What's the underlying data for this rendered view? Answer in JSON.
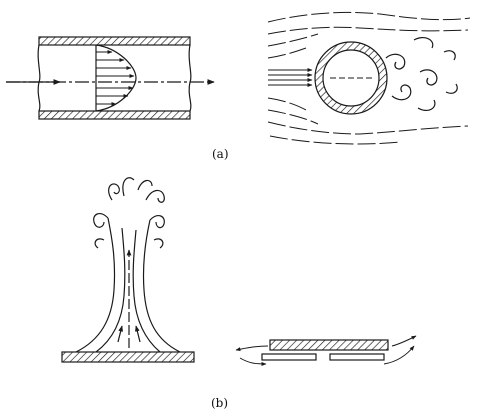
{
  "figure": {
    "label_a": "(a)",
    "label_b": "(b)",
    "panels": [
      {
        "id": "a-left",
        "depicts": "pipe-flow-velocity-profile"
      },
      {
        "id": "a-right",
        "depicts": "flow-around-circular-cylinder"
      },
      {
        "id": "b-left",
        "depicts": "plume-rising-from-heated-plate"
      },
      {
        "id": "b-right",
        "depicts": "flow-over-plate-with-slot"
      }
    ],
    "colors": {
      "ink": "#1a1a1a",
      "paper": "#ffffff"
    }
  }
}
